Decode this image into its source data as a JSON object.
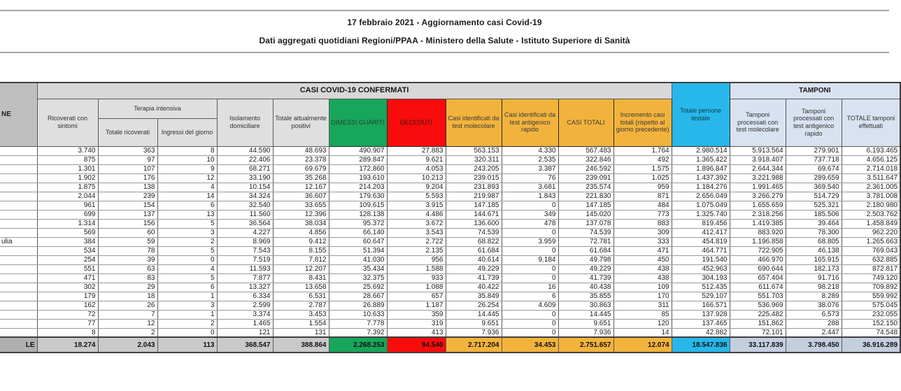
{
  "header": {
    "title": "17 febbraio 2021 - Aggiornamento casi Covid-19",
    "subtitle": "Dati aggregati quotidiani Regioni/PPAA - Ministero della Salute - Istituto Superiore di Sanità"
  },
  "table": {
    "headers": {
      "region_fragment": "NE",
      "casi_confermati": "CASI COVID-19 CONFERMATI",
      "tamponi": "TAMPONI",
      "ricoverati": "Ricoverati con sintomi",
      "terapia_intensiva": "Terapia intensiva",
      "totale_ricoverati": "Totale ricoverati",
      "ingressi": "Ingressi del giorno",
      "isolamento": "Isolamento domiciliare",
      "attualmente_positivi": "Totale attualmente positivi",
      "dimessi": "DIMESSI GUARITI",
      "deceduti": "DECEDUTI",
      "casi_molecolare": "Casi identificati da test molecolare",
      "casi_antigenico": "Casi identificati da test antigenico rapido",
      "casi_totali": "CASI TOTALI",
      "incremento": "Incremento casi totali (rispetto al giorno precedente)",
      "persone_testate": "Totale persone testate",
      "tamponi_molecolare": "Tamponi processati con test molecolare",
      "tamponi_antigenico": "Tamponi processati con test antigenico rapido",
      "totale_tamponi": "TOTALE tamponi effettuati"
    },
    "rows": [
      [
        "",
        "3.740",
        "363",
        "8",
        "44.590",
        "48.693",
        "490.907",
        "27.883",
        "563.153",
        "4.330",
        "567.483",
        "1.764",
        "2.980.514",
        "5.913.564",
        "279.901",
        "6.193.465"
      ],
      [
        "",
        "875",
        "97",
        "10",
        "22.406",
        "23.378",
        "289.847",
        "9.621",
        "320.311",
        "2.535",
        "322.846",
        "492",
        "1.365.422",
        "3.918.407",
        "737.718",
        "4.656.125"
      ],
      [
        "",
        "1.301",
        "107",
        "9",
        "68.271",
        "69.679",
        "172.860",
        "4.053",
        "243.205",
        "3.387",
        "246.592",
        "1.575",
        "1.896.847",
        "2.644.344",
        "69.674",
        "2.714.018"
      ],
      [
        "",
        "1.902",
        "176",
        "12",
        "33.190",
        "35.268",
        "193.610",
        "10.213",
        "239.015",
        "76",
        "239.091",
        "1.025",
        "1.437.392",
        "3.221.988",
        "289.659",
        "3.511.647"
      ],
      [
        "",
        "1.875",
        "138",
        "4",
        "10.154",
        "12.167",
        "214.203",
        "9.204",
        "231.893",
        "3.681",
        "235.574",
        "959",
        "1.184.276",
        "1.991.465",
        "369.540",
        "2.361.005"
      ],
      [
        "",
        "2.044",
        "239",
        "14",
        "34.324",
        "36.607",
        "179.630",
        "5.593",
        "219.987",
        "1.843",
        "221.830",
        "871",
        "2.656.049",
        "3.266.279",
        "514.729",
        "3.781.008"
      ],
      [
        "",
        "961",
        "154",
        "6",
        "32.540",
        "33.655",
        "109.615",
        "3.915",
        "147.185",
        "0",
        "147.185",
        "484",
        "1.075.049",
        "1.655.659",
        "525.321",
        "2.180.980"
      ],
      [
        "",
        "699",
        "137",
        "13",
        "11.560",
        "12.396",
        "128.138",
        "4.486",
        "144.671",
        "349",
        "145.020",
        "773",
        "1.325.740",
        "2.318.256",
        "185.506",
        "2.503.762"
      ],
      [
        "",
        "1.314",
        "156",
        "5",
        "36.564",
        "38.034",
        "95.372",
        "3.672",
        "136.600",
        "478",
        "137.078",
        "883",
        "819.456",
        "1.419.385",
        "39.464",
        "1.458.849"
      ],
      [
        "",
        "569",
        "60",
        "3",
        "4.227",
        "4.856",
        "66.140",
        "3.543",
        "74.539",
        "0",
        "74.539",
        "309",
        "412.417",
        "883.920",
        "78.300",
        "962.220"
      ],
      [
        "ulia",
        "384",
        "59",
        "2",
        "8.969",
        "9.412",
        "60.647",
        "2.722",
        "68.822",
        "3.959",
        "72.781",
        "333",
        "454.819",
        "1.196.858",
        "68.805",
        "1.265.663"
      ],
      [
        "",
        "534",
        "78",
        "5",
        "7.543",
        "8.155",
        "51.394",
        "2.135",
        "61.684",
        "0",
        "61.684",
        "471",
        "464.771",
        "722.905",
        "46.138",
        "769.043"
      ],
      [
        "",
        "254",
        "39",
        "0",
        "7.519",
        "7.812",
        "41.030",
        "956",
        "40.614",
        "9.184",
        "49.798",
        "450",
        "191.540",
        "466.970",
        "165.915",
        "632.885"
      ],
      [
        "",
        "551",
        "63",
        "4",
        "11.593",
        "12.207",
        "35.434",
        "1.588",
        "49.229",
        "0",
        "49.229",
        "438",
        "452.963",
        "690.644",
        "182.173",
        "872.817"
      ],
      [
        "",
        "471",
        "83",
        "5",
        "7.877",
        "8.431",
        "32.375",
        "933",
        "41.739",
        "0",
        "41.739",
        "438",
        "304.193",
        "657.404",
        "91.716",
        "749.120"
      ],
      [
        "",
        "302",
        "29",
        "6",
        "13.327",
        "13.658",
        "25.692",
        "1.088",
        "40.422",
        "16",
        "40.438",
        "109",
        "512.435",
        "611.674",
        "98.218",
        "709.892"
      ],
      [
        "",
        "179",
        "18",
        "1",
        "6.334",
        "6.531",
        "28.667",
        "657",
        "35.849",
        "6",
        "35.855",
        "170",
        "529.107",
        "551.703",
        "8.289",
        "559.992"
      ],
      [
        "",
        "162",
        "26",
        "3",
        "2.599",
        "2.787",
        "26.889",
        "1.187",
        "26.254",
        "4.609",
        "30.863",
        "311",
        "166.571",
        "536.969",
        "38.076",
        "575.045"
      ],
      [
        "",
        "72",
        "7",
        "1",
        "3.374",
        "3.453",
        "10.633",
        "359",
        "14.445",
        "0",
        "14.445",
        "85",
        "137.928",
        "225.482",
        "6.573",
        "232.055"
      ],
      [
        "",
        "77",
        "12",
        "2",
        "1.465",
        "1.554",
        "7.778",
        "319",
        "9.651",
        "0",
        "9.651",
        "120",
        "137.465",
        "151.862",
        "288",
        "152.150"
      ],
      [
        "",
        "8",
        "2",
        "0",
        "121",
        "131",
        "7.392",
        "413",
        "7.936",
        "0",
        "7.936",
        "14",
        "42.882",
        "72.101",
        "2.447",
        "74.548"
      ]
    ],
    "total": [
      "LE",
      "18.274",
      "2.043",
      "113",
      "368.547",
      "388.864",
      "2.268.253",
      "94.540",
      "2.717.204",
      "34.453",
      "2.751.657",
      "12.074",
      "18.547.836",
      "33.117.839",
      "3.798.450",
      "36.916.289"
    ],
    "total_cell_styles": [
      "t-region",
      "t-gray",
      "t-gray",
      "t-gray",
      "t-gray",
      "t-gray",
      "t-green",
      "t-red",
      "t-orange",
      "t-orange",
      "t-orange",
      "t-orange",
      "t-cyan",
      "t-blue",
      "t-blue",
      "t-blue"
    ],
    "colors": {
      "green": "#17a65b",
      "red": "#f90c0c",
      "orange": "#f2b33c",
      "cyan": "#27b7ea",
      "light_blue": "#d9e2f0",
      "header_gray": "#d8d8d8",
      "region_gray": "#bfbfbf",
      "total_gray": "#c9c9c9"
    }
  }
}
